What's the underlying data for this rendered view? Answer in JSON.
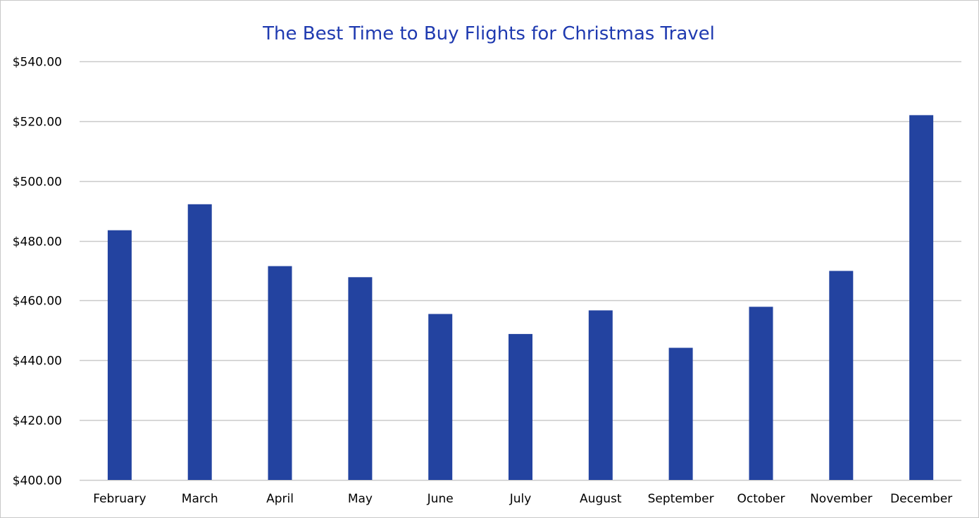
{
  "chart_data": {
    "type": "bar",
    "title": "The Best Time to Buy Flights for Christmas Travel",
    "xlabel": "",
    "ylabel": "",
    "categories": [
      "February",
      "March",
      "April",
      "May",
      "June",
      "July",
      "August",
      "September",
      "October",
      "November",
      "December"
    ],
    "values": [
      483.5,
      492.2,
      471.5,
      467.8,
      455.5,
      448.8,
      456.7,
      444.2,
      457.9,
      469.9,
      522.0
    ],
    "ylim": [
      400,
      540
    ],
    "yticks": [
      400,
      420,
      440,
      460,
      480,
      500,
      520,
      540
    ],
    "ytick_labels": [
      "$400.00",
      "$420.00",
      "$440.00",
      "$460.00",
      "$480.00",
      "$500.00",
      "$520.00",
      "$540.00"
    ],
    "grid": true,
    "legend": "none",
    "colors": {
      "bar": "#2343a0",
      "title": "#1f3ab0",
      "gridline": "#c9c9c9"
    }
  }
}
